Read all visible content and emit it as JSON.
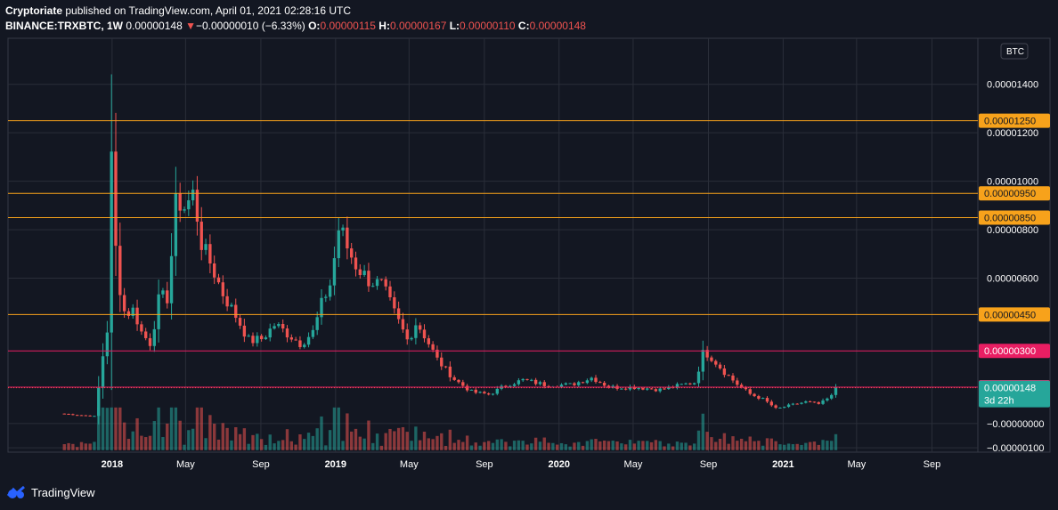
{
  "header": {
    "author": "Cryptoriate",
    "published": "published on TradingView.com, April 01, 2021 02:28:16 UTC"
  },
  "symbol_line": {
    "symbol": "BINANCE:TRXBTC, 1W",
    "last": "0.00000148",
    "change": "−0.00000010 (−6.33%)",
    "o_label": "O:",
    "o": "0.00000115",
    "h_label": "H:",
    "h": "0.00000167",
    "l_label": "L:",
    "l": "0.00000110",
    "c_label": "C:",
    "c": "0.00000148"
  },
  "brand": {
    "name": "TradingView"
  },
  "colors": {
    "background": "#131722",
    "grid": "#2a2e39",
    "up": "#26a69a",
    "down": "#ef5350",
    "orange_level": "#f7a21b",
    "pink_level": "#e91e63",
    "price_line": "#ef5350"
  },
  "chart_data": {
    "type": "candlestick",
    "currency_label": "BTC",
    "y_range": [
      -1.18e-06,
      1.59e-05
    ],
    "y_ticks": [
      {
        "value": 1.4e-05,
        "label": "0.00001400"
      },
      {
        "value": 1.2e-05,
        "label": "0.00001200"
      },
      {
        "value": 1e-05,
        "label": "0.00001000"
      },
      {
        "value": 8e-06,
        "label": "0.00000800"
      },
      {
        "value": 6e-06,
        "label": "0.00000600"
      },
      {
        "value": 0.0,
        "label": "−0.00000000"
      },
      {
        "value": -1e-06,
        "label": "−0.00000100"
      }
    ],
    "x_ticks": [
      {
        "date": "2018-01-01",
        "label": "2018",
        "bold": true
      },
      {
        "date": "2018-05-01",
        "label": "May",
        "bold": false
      },
      {
        "date": "2018-09-01",
        "label": "Sep",
        "bold": false
      },
      {
        "date": "2019-01-01",
        "label": "2019",
        "bold": true
      },
      {
        "date": "2019-05-01",
        "label": "May",
        "bold": false
      },
      {
        "date": "2019-09-01",
        "label": "Sep",
        "bold": false
      },
      {
        "date": "2020-01-01",
        "label": "2020",
        "bold": true
      },
      {
        "date": "2020-05-01",
        "label": "May",
        "bold": false
      },
      {
        "date": "2020-09-01",
        "label": "Sep",
        "bold": false
      },
      {
        "date": "2021-01-01",
        "label": "2021",
        "bold": true
      },
      {
        "date": "2021-05-01",
        "label": "May",
        "bold": false
      },
      {
        "date": "2021-09-01",
        "label": "Sep",
        "bold": false
      }
    ],
    "x_range": [
      "2017-07-15",
      "2021-11-15"
    ],
    "levels": [
      {
        "value": 1.25e-05,
        "label": "0.00001250",
        "color": "#f7a21b"
      },
      {
        "value": 9.5e-06,
        "label": "0.00000950",
        "color": "#f7a21b"
      },
      {
        "value": 8.5e-06,
        "label": "0.00000850",
        "color": "#f7a21b"
      },
      {
        "value": 4.5e-06,
        "label": "0.00000450",
        "color": "#f7a21b"
      },
      {
        "value": 3e-06,
        "label": "0.00000300",
        "color": "#e91e63"
      },
      {
        "value": 1.5e-06,
        "label": "0.00000150",
        "color": "#e91e63"
      }
    ],
    "current_price": {
      "value": 1.48e-06,
      "label": "0.00000148",
      "countdown": "3d 22h"
    },
    "anchors": [
      {
        "date": "2017-10-15",
        "price": 4e-07
      },
      {
        "date": "2017-12-04",
        "price": 3e-07
      },
      {
        "date": "2017-12-18",
        "price": 3e-06
      },
      {
        "date": "2017-12-25",
        "price": 4e-06
      },
      {
        "date": "2018-01-01",
        "price": 1.2e-05
      },
      {
        "date": "2018-01-08",
        "price": 6.4e-06
      },
      {
        "date": "2018-01-22",
        "price": 4.5e-06
      },
      {
        "date": "2018-02-05",
        "price": 4.7e-06
      },
      {
        "date": "2018-02-19",
        "price": 3.7e-06
      },
      {
        "date": "2018-03-05",
        "price": 3.3e-06
      },
      {
        "date": "2018-03-19",
        "price": 5.2e-06
      },
      {
        "date": "2018-04-02",
        "price": 5.2e-06
      },
      {
        "date": "2018-04-16",
        "price": 9.3e-06
      },
      {
        "date": "2018-04-30",
        "price": 8.9e-06
      },
      {
        "date": "2018-05-14",
        "price": 9.5e-06
      },
      {
        "date": "2018-05-28",
        "price": 7.3e-06
      },
      {
        "date": "2018-06-11",
        "price": 6.6e-06
      },
      {
        "date": "2018-07-02",
        "price": 5.3e-06
      },
      {
        "date": "2018-07-23",
        "price": 4.4e-06
      },
      {
        "date": "2018-08-13",
        "price": 3.4e-06
      },
      {
        "date": "2018-09-03",
        "price": 3.5e-06
      },
      {
        "date": "2018-09-24",
        "price": 4.1e-06
      },
      {
        "date": "2018-10-15",
        "price": 3.7e-06
      },
      {
        "date": "2018-11-05",
        "price": 3.3e-06
      },
      {
        "date": "2018-11-26",
        "price": 3.8e-06
      },
      {
        "date": "2018-12-10",
        "price": 5e-06
      },
      {
        "date": "2018-12-24",
        "price": 5.8e-06
      },
      {
        "date": "2019-01-07",
        "price": 8.2e-06
      },
      {
        "date": "2019-01-21",
        "price": 7.2e-06
      },
      {
        "date": "2019-02-04",
        "price": 6.5e-06
      },
      {
        "date": "2019-02-25",
        "price": 5.9e-06
      },
      {
        "date": "2019-03-18",
        "price": 5.7e-06
      },
      {
        "date": "2019-04-08",
        "price": 4.5e-06
      },
      {
        "date": "2019-04-29",
        "price": 3.4e-06
      },
      {
        "date": "2019-05-13",
        "price": 4.2e-06
      },
      {
        "date": "2019-05-27",
        "price": 3.6e-06
      },
      {
        "date": "2019-06-17",
        "price": 2.6e-06
      },
      {
        "date": "2019-07-15",
        "price": 1.8e-06
      },
      {
        "date": "2019-08-12",
        "price": 1.3e-06
      },
      {
        "date": "2019-09-09",
        "price": 1.2e-06
      },
      {
        "date": "2019-10-07",
        "price": 1.6e-06
      },
      {
        "date": "2019-11-04",
        "price": 1.8e-06
      },
      {
        "date": "2019-12-09",
        "price": 1.6e-06
      },
      {
        "date": "2020-01-20",
        "price": 1.6e-06
      },
      {
        "date": "2020-02-24",
        "price": 1.9e-06
      },
      {
        "date": "2020-03-23",
        "price": 1.5e-06
      },
      {
        "date": "2020-05-04",
        "price": 1.5e-06
      },
      {
        "date": "2020-06-15",
        "price": 1.4e-06
      },
      {
        "date": "2020-07-20",
        "price": 1.6e-06
      },
      {
        "date": "2020-08-10",
        "price": 1.7e-06
      },
      {
        "date": "2020-08-24",
        "price": 3e-06
      },
      {
        "date": "2020-09-07",
        "price": 2.7e-06
      },
      {
        "date": "2020-09-28",
        "price": 2.1e-06
      },
      {
        "date": "2020-10-19",
        "price": 1.6e-06
      },
      {
        "date": "2020-11-09",
        "price": 1.2e-06
      },
      {
        "date": "2020-11-30",
        "price": 1e-06
      },
      {
        "date": "2020-12-21",
        "price": 6e-07
      },
      {
        "date": "2021-01-11",
        "price": 7.5e-07
      },
      {
        "date": "2021-02-08",
        "price": 9e-07
      },
      {
        "date": "2021-03-01",
        "price": 8e-07
      },
      {
        "date": "2021-03-22",
        "price": 1.15e-06
      },
      {
        "date": "2021-03-29",
        "price": 1.48e-06
      }
    ]
  }
}
